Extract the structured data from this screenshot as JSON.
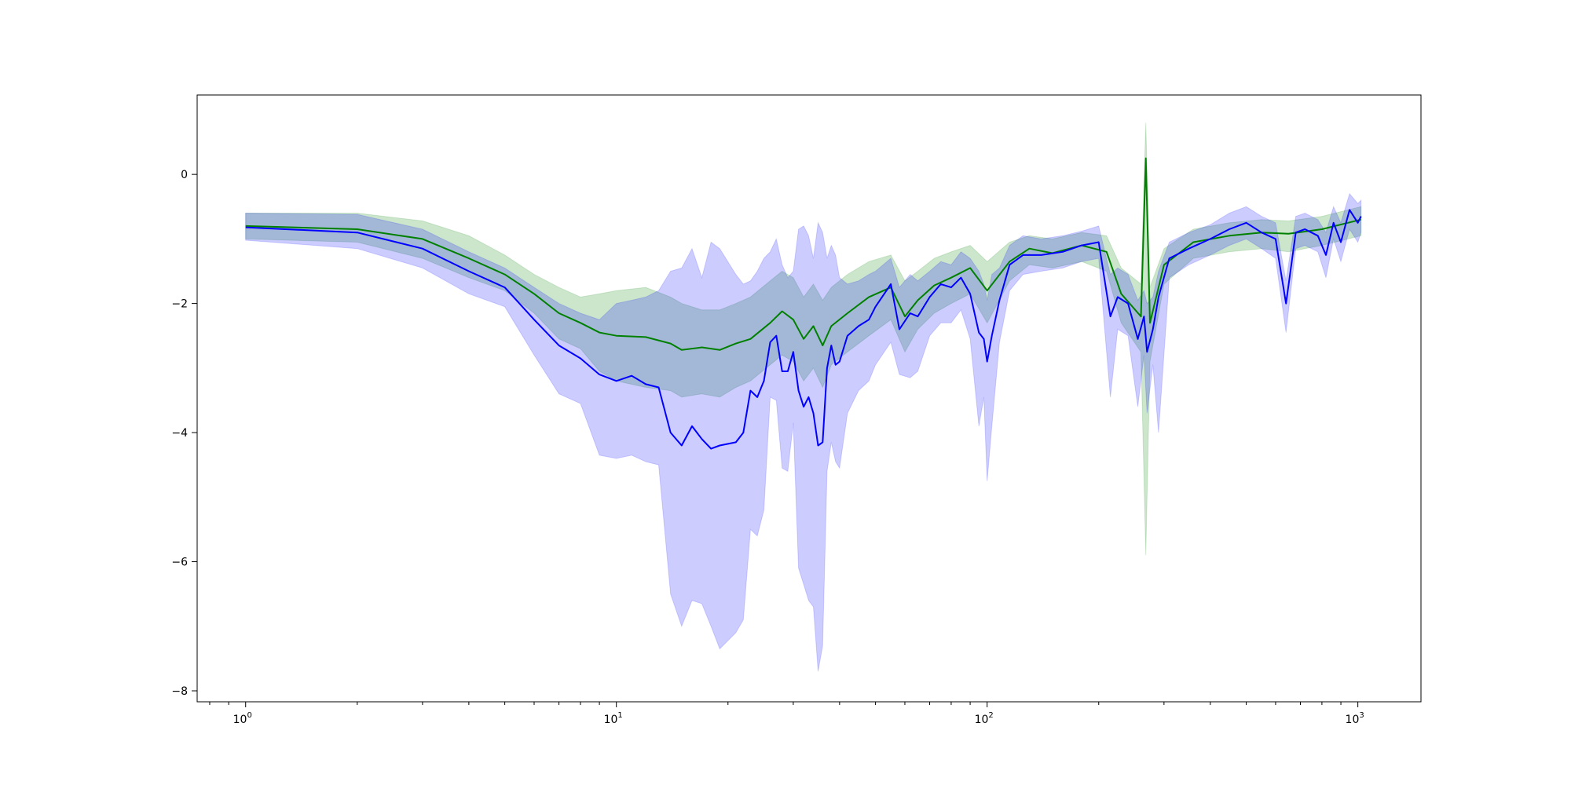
{
  "chart_data": {
    "type": "line",
    "title": "",
    "xlabel": "",
    "ylabel": "",
    "xscale": "log",
    "xlim": [
      0.74,
      1480
    ],
    "ylim": [
      -8.17,
      1.23
    ],
    "grid": false,
    "legend": "none",
    "x_ticks": [
      {
        "value": 1,
        "base": "10",
        "exp": "0"
      },
      {
        "value": 10,
        "base": "10",
        "exp": "1"
      },
      {
        "value": 100,
        "base": "10",
        "exp": "2"
      },
      {
        "value": 1000,
        "base": "10",
        "exp": "3"
      }
    ],
    "y_ticks": [
      {
        "value": 0,
        "label": "0"
      },
      {
        "value": -2,
        "label": "−2"
      },
      {
        "value": -4,
        "label": "−4"
      },
      {
        "value": -6,
        "label": "−6"
      },
      {
        "value": -8,
        "label": "−8"
      }
    ],
    "series": [
      {
        "color": "#008000",
        "band_color": "#008000",
        "band_opacity": 0.2,
        "points": [
          [
            1,
            -0.8,
            -0.6,
            -1.0
          ],
          [
            2,
            -0.85,
            -0.6,
            -1.05
          ],
          [
            3,
            -1.0,
            -0.72,
            -1.3
          ],
          [
            4,
            -1.3,
            -0.95,
            -1.6
          ],
          [
            5,
            -1.55,
            -1.25,
            -1.8
          ],
          [
            6,
            -1.85,
            -1.55,
            -2.15
          ],
          [
            7,
            -2.15,
            -1.75,
            -2.55
          ],
          [
            8,
            -2.3,
            -1.9,
            -2.7
          ],
          [
            9,
            -2.45,
            -1.85,
            -3.05
          ],
          [
            10,
            -2.5,
            -1.8,
            -3.2
          ],
          [
            12,
            -2.52,
            -1.75,
            -3.3
          ],
          [
            14,
            -2.62,
            -1.9,
            -3.35
          ],
          [
            15,
            -2.72,
            -2.0,
            -3.45
          ],
          [
            17,
            -2.68,
            -2.1,
            -3.4
          ],
          [
            19,
            -2.72,
            -2.1,
            -3.45
          ],
          [
            21,
            -2.62,
            -2.0,
            -3.3
          ],
          [
            23,
            -2.55,
            -1.9,
            -3.2
          ],
          [
            26,
            -2.3,
            -1.65,
            -2.95
          ],
          [
            28,
            -2.12,
            -1.5,
            -2.8
          ],
          [
            30,
            -2.25,
            -1.6,
            -2.9
          ],
          [
            32,
            -2.55,
            -1.9,
            -3.2
          ],
          [
            34,
            -2.35,
            -1.7,
            -3.0
          ],
          [
            36,
            -2.65,
            -1.95,
            -3.3
          ],
          [
            38,
            -2.35,
            -1.75,
            -2.95
          ],
          [
            42,
            -2.15,
            -1.55,
            -2.75
          ],
          [
            48,
            -1.9,
            -1.35,
            -2.5
          ],
          [
            55,
            -1.75,
            -1.25,
            -2.25
          ],
          [
            60,
            -2.2,
            -1.65,
            -2.75
          ],
          [
            65,
            -1.95,
            -1.5,
            -2.4
          ],
          [
            72,
            -1.72,
            -1.3,
            -2.15
          ],
          [
            80,
            -1.6,
            -1.2,
            -2.0
          ],
          [
            90,
            -1.45,
            -1.1,
            -1.85
          ],
          [
            100,
            -1.8,
            -1.35,
            -2.3
          ],
          [
            115,
            -1.35,
            -1.05,
            -1.65
          ],
          [
            130,
            -1.15,
            -0.95,
            -1.4
          ],
          [
            150,
            -1.22,
            -1.0,
            -1.45
          ],
          [
            180,
            -1.1,
            -0.9,
            -1.35
          ],
          [
            210,
            -1.2,
            -0.95,
            -1.5
          ],
          [
            230,
            -1.85,
            -1.45,
            -2.3
          ],
          [
            260,
            -2.2,
            -1.7,
            -2.75
          ],
          [
            268,
            0.25,
            0.8,
            -5.9
          ],
          [
            275,
            -2.3,
            -1.75,
            -2.9
          ],
          [
            300,
            -1.4,
            -1.15,
            -1.7
          ],
          [
            360,
            -1.05,
            -0.85,
            -1.3
          ],
          [
            450,
            -0.95,
            -0.75,
            -1.2
          ],
          [
            550,
            -0.9,
            -0.7,
            -1.15
          ],
          [
            650,
            -0.92,
            -0.72,
            -1.2
          ],
          [
            800,
            -0.85,
            -0.65,
            -1.1
          ],
          [
            1020,
            -0.7,
            -0.5,
            -0.95
          ]
        ]
      },
      {
        "color": "#0000ff",
        "band_color": "#0000ff",
        "band_opacity": 0.2,
        "points": [
          [
            1,
            -0.82,
            -0.6,
            -1.02
          ],
          [
            2,
            -0.9,
            -0.62,
            -1.15
          ],
          [
            3,
            -1.15,
            -0.85,
            -1.45
          ],
          [
            4,
            -1.5,
            -1.2,
            -1.85
          ],
          [
            5,
            -1.75,
            -1.45,
            -2.05
          ],
          [
            6,
            -2.25,
            -1.75,
            -2.8
          ],
          [
            7,
            -2.65,
            -2.0,
            -3.4
          ],
          [
            8,
            -2.85,
            -2.15,
            -3.55
          ],
          [
            9,
            -3.1,
            -2.25,
            -4.35
          ],
          [
            10,
            -3.2,
            -2.0,
            -4.4
          ],
          [
            11,
            -3.12,
            -1.95,
            -4.35
          ],
          [
            12,
            -3.25,
            -1.9,
            -4.45
          ],
          [
            13,
            -3.3,
            -1.8,
            -4.5
          ],
          [
            14,
            -4.0,
            -1.5,
            -6.5
          ],
          [
            15,
            -4.2,
            -1.45,
            -7.0
          ],
          [
            16,
            -3.9,
            -1.15,
            -6.6
          ],
          [
            17,
            -4.1,
            -1.6,
            -6.65
          ],
          [
            18,
            -4.25,
            -1.05,
            -7.0
          ],
          [
            19,
            -4.2,
            -1.15,
            -7.35
          ],
          [
            21,
            -4.15,
            -1.55,
            -7.1
          ],
          [
            22,
            -4.0,
            -1.7,
            -6.9
          ],
          [
            23,
            -3.35,
            -1.65,
            -5.5
          ],
          [
            24,
            -3.45,
            -1.5,
            -5.6
          ],
          [
            25,
            -3.2,
            -1.3,
            -5.2
          ],
          [
            26,
            -2.6,
            -1.2,
            -3.45
          ],
          [
            27,
            -2.5,
            -1.0,
            -3.5
          ],
          [
            28,
            -3.05,
            -1.4,
            -4.55
          ],
          [
            29,
            -3.05,
            -1.6,
            -4.6
          ],
          [
            30,
            -2.75,
            -1.5,
            -3.85
          ],
          [
            31,
            -3.35,
            -0.85,
            -6.1
          ],
          [
            32,
            -3.6,
            -0.8,
            -6.35
          ],
          [
            33,
            -3.45,
            -0.95,
            -6.6
          ],
          [
            34,
            -3.7,
            -1.3,
            -6.7
          ],
          [
            35,
            -4.2,
            -0.75,
            -7.7
          ],
          [
            36,
            -4.15,
            -0.9,
            -7.3
          ],
          [
            37,
            -3.0,
            -1.3,
            -4.6
          ],
          [
            38,
            -2.65,
            -1.1,
            -4.15
          ],
          [
            39,
            -2.95,
            -1.25,
            -4.45
          ],
          [
            40,
            -2.9,
            -1.6,
            -4.55
          ],
          [
            42,
            -2.5,
            -1.7,
            -3.7
          ],
          [
            45,
            -2.35,
            -1.65,
            -3.35
          ],
          [
            48,
            -2.25,
            -1.55,
            -3.2
          ],
          [
            50,
            -2.05,
            -1.5,
            -2.95
          ],
          [
            55,
            -1.7,
            -1.3,
            -2.6
          ],
          [
            58,
            -2.4,
            -1.75,
            -3.1
          ],
          [
            62,
            -2.15,
            -1.55,
            -3.15
          ],
          [
            65,
            -2.2,
            -1.65,
            -3.05
          ],
          [
            70,
            -1.9,
            -1.5,
            -2.5
          ],
          [
            75,
            -1.7,
            -1.35,
            -2.3
          ],
          [
            80,
            -1.75,
            -1.4,
            -2.3
          ],
          [
            85,
            -1.6,
            -1.2,
            -2.1
          ],
          [
            90,
            -1.85,
            -1.3,
            -2.55
          ],
          [
            95,
            -2.45,
            -1.5,
            -3.9
          ],
          [
            98,
            -2.55,
            -1.7,
            -3.45
          ],
          [
            100,
            -2.9,
            -1.95,
            -4.75
          ],
          [
            103,
            -2.5,
            -1.55,
            -3.9
          ],
          [
            108,
            -1.95,
            -1.45,
            -2.6
          ],
          [
            115,
            -1.4,
            -1.1,
            -1.8
          ],
          [
            125,
            -1.25,
            -0.95,
            -1.55
          ],
          [
            140,
            -1.25,
            -1.0,
            -1.5
          ],
          [
            160,
            -1.2,
            -0.95,
            -1.45
          ],
          [
            180,
            -1.1,
            -0.88,
            -1.35
          ],
          [
            200,
            -1.05,
            -0.8,
            -1.3
          ],
          [
            215,
            -2.2,
            -1.55,
            -3.45
          ],
          [
            225,
            -1.9,
            -1.45,
            -2.4
          ],
          [
            240,
            -2.0,
            -1.55,
            -2.5
          ],
          [
            255,
            -2.55,
            -1.95,
            -3.6
          ],
          [
            265,
            -2.2,
            -1.8,
            -2.8
          ],
          [
            270,
            -2.75,
            -2.0,
            -3.7
          ],
          [
            280,
            -2.4,
            -1.9,
            -2.95
          ],
          [
            290,
            -1.9,
            -1.5,
            -4.0
          ],
          [
            310,
            -1.3,
            -1.05,
            -1.6
          ],
          [
            350,
            -1.15,
            -0.9,
            -1.4
          ],
          [
            400,
            -1.0,
            -0.78,
            -1.25
          ],
          [
            450,
            -0.85,
            -0.6,
            -1.1
          ],
          [
            500,
            -0.75,
            -0.5,
            -1.0
          ],
          [
            550,
            -0.9,
            -0.65,
            -1.15
          ],
          [
            600,
            -1.0,
            -0.75,
            -1.3
          ],
          [
            640,
            -2.0,
            -1.65,
            -2.45
          ],
          [
            680,
            -0.9,
            -0.65,
            -1.15
          ],
          [
            720,
            -0.85,
            -0.6,
            -1.1
          ],
          [
            780,
            -0.95,
            -0.7,
            -1.2
          ],
          [
            820,
            -1.25,
            -0.9,
            -1.6
          ],
          [
            860,
            -0.75,
            -0.5,
            -1.0
          ],
          [
            900,
            -1.05,
            -0.75,
            -1.35
          ],
          [
            950,
            -0.55,
            -0.3,
            -0.85
          ],
          [
            1000,
            -0.75,
            -0.45,
            -1.05
          ],
          [
            1020,
            -0.65,
            -0.4,
            -0.9
          ]
        ]
      }
    ]
  }
}
